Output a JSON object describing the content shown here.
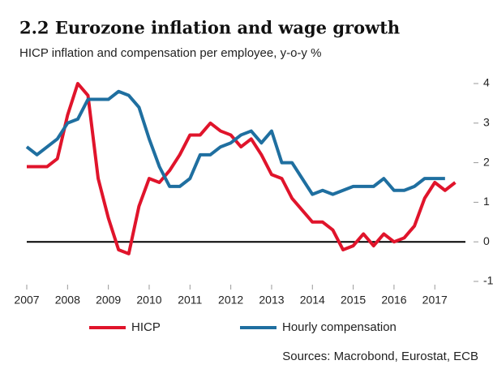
{
  "chart_data": {
    "type": "line",
    "title": "2.2 Eurozone inflation and wage growth",
    "subtitle": "HICP inflation and compensation per employee, y-o-y %",
    "source": "Sources: Macrobond, Eurostat, ECB",
    "x": [
      2007,
      2007.25,
      2007.5,
      2007.75,
      2008,
      2008.25,
      2008.5,
      2008.75,
      2009,
      2009.25,
      2009.5,
      2009.75,
      2010,
      2010.25,
      2010.5,
      2010.75,
      2011,
      2011.25,
      2011.5,
      2011.75,
      2012,
      2012.25,
      2012.5,
      2012.75,
      2013,
      2013.25,
      2013.5,
      2013.75,
      2014,
      2014.25,
      2014.5,
      2014.75,
      2015,
      2015.25,
      2015.5,
      2015.75,
      2016,
      2016.25,
      2016.5,
      2016.75,
      2017,
      2017.25,
      2017.5
    ],
    "series": [
      {
        "name": "HICP",
        "color": "#e0142b",
        "values": [
          1.9,
          1.9,
          1.9,
          2.1,
          3.2,
          4.0,
          3.7,
          1.6,
          0.6,
          -0.2,
          -0.3,
          0.9,
          1.6,
          1.5,
          1.8,
          2.2,
          2.7,
          2.7,
          3.0,
          2.8,
          2.7,
          2.4,
          2.6,
          2.2,
          1.7,
          1.6,
          1.1,
          0.8,
          0.5,
          0.5,
          0.3,
          -0.2,
          -0.1,
          0.2,
          -0.1,
          0.2,
          0.0,
          0.1,
          0.4,
          1.1,
          1.5,
          1.3,
          1.5
        ]
      },
      {
        "name": "Hourly compensation",
        "color": "#1f6fa0",
        "values": [
          2.4,
          2.2,
          2.4,
          2.6,
          3.0,
          3.1,
          3.6,
          3.6,
          3.6,
          3.8,
          3.7,
          3.4,
          2.6,
          1.9,
          1.4,
          1.4,
          1.6,
          2.2,
          2.2,
          2.4,
          2.5,
          2.7,
          2.8,
          2.5,
          2.8,
          2.0,
          2.0,
          1.6,
          1.2,
          1.3,
          1.2,
          1.3,
          1.4,
          1.4,
          1.4,
          1.6,
          1.3,
          1.3,
          1.4,
          1.6,
          1.6,
          1.6,
          null
        ]
      }
    ],
    "xlim": [
      2007,
      2017.75
    ],
    "xticks": [
      2007,
      2008,
      2009,
      2010,
      2011,
      2012,
      2013,
      2014,
      2015,
      2016,
      2017
    ],
    "ylim": [
      -1,
      4
    ],
    "yticks": [
      -1,
      0,
      1,
      2,
      3,
      4
    ],
    "grid": false,
    "legend": "bottom"
  }
}
